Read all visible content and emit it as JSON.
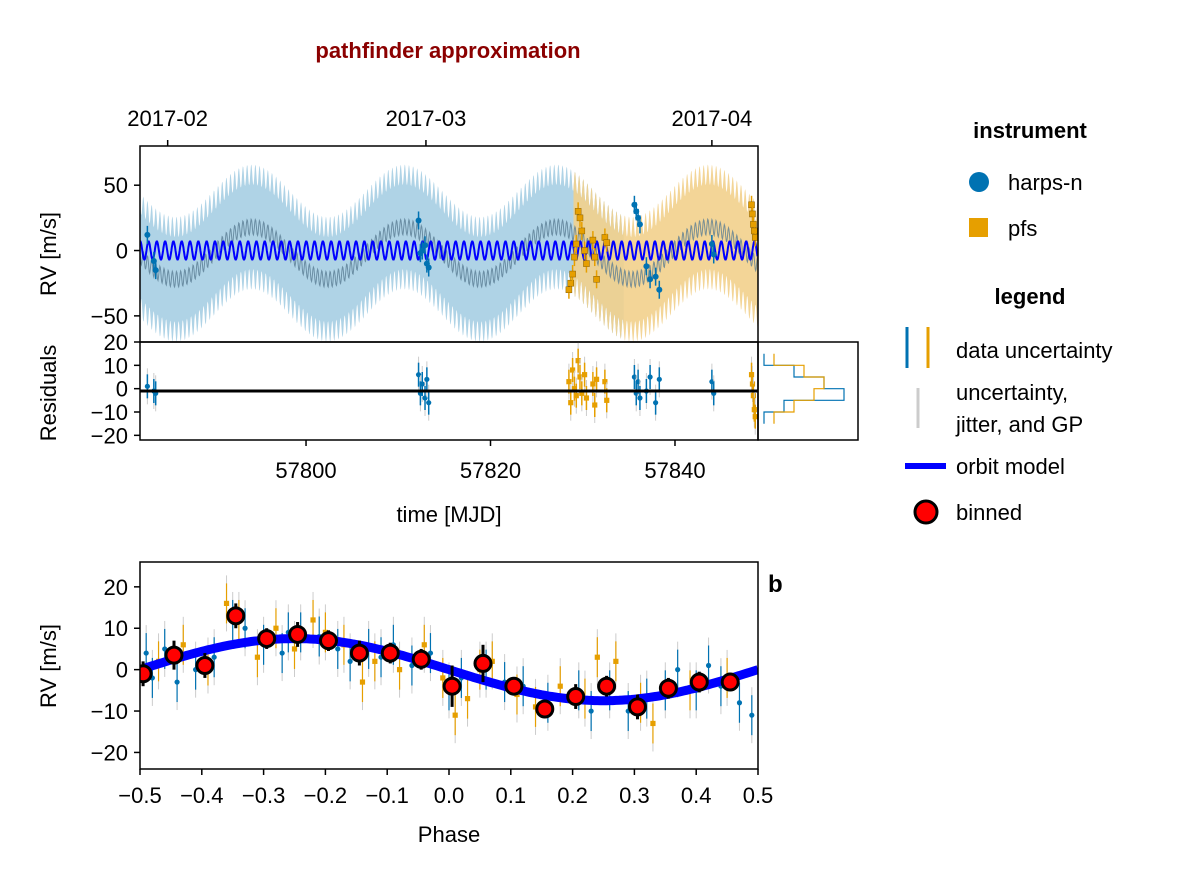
{
  "title": "pathfinder approximation",
  "colors": {
    "title": "#8b0000",
    "harps_n": "#0072b2",
    "harps_n_band": "#a6cee3",
    "pfs": "#e69f00",
    "pfs_band": "#f2d08c",
    "orbit_model": "#0000ff",
    "binned_fill": "#ff0000",
    "uncertainty_gray": "#cccccc"
  },
  "legend": {
    "instrument_title": "instrument",
    "instrument_items": [
      {
        "label": "harps-n",
        "marker": "circle"
      },
      {
        "label": "pfs",
        "marker": "square"
      }
    ],
    "legend_title": "legend",
    "items": [
      {
        "label": "data uncertainty"
      },
      {
        "label_lines": [
          "uncertainty,",
          "jitter, and GP"
        ]
      },
      {
        "label": "orbit model"
      },
      {
        "label": "binned"
      }
    ]
  },
  "panel_b_label": "b",
  "chart_data": [
    {
      "type": "scatter",
      "panel": "rv_vs_time",
      "ylabel": "RV [m/s]",
      "ylim": [
        -70,
        80
      ],
      "yticks": [
        -50,
        0,
        50
      ],
      "ytick_labels": [
        "−50",
        "0",
        "50"
      ],
      "xlim": [
        57782,
        57849
      ],
      "top_axis_ticks": [
        57785,
        57813,
        57844
      ],
      "top_axis_tick_labels": [
        "2017-02",
        "2017-03",
        "2017-04"
      ],
      "orbit_model": {
        "amplitude": 7,
        "period_days": 0.9,
        "note_style": "blue band"
      },
      "series": [
        {
          "name": "harps-n",
          "segments": [
            [
              57782,
              57829
            ],
            [
              57829,
              57849
            ]
          ],
          "x": [
            57782.8,
            57783.5,
            57783.7,
            57812.2,
            57812.4,
            57812.6,
            57812.9,
            57813.1,
            57813.3,
            57835.6,
            57835.8,
            57836.0,
            57836.2,
            57836.9,
            57837.3,
            57837.9,
            57838.3,
            57844.0,
            57844.2
          ],
          "y": [
            12,
            -8,
            -15,
            23,
            -2,
            0,
            4,
            -10,
            -13,
            35,
            30,
            25,
            20,
            -12,
            -22,
            -20,
            -30,
            5,
            -3
          ]
        },
        {
          "name": "pfs",
          "x": [
            57828.5,
            57828.7,
            57828.9,
            57829.1,
            57829.3,
            57829.5,
            57829.7,
            57829.9,
            57830.2,
            57830.4,
            57831.1,
            57831.3,
            57831.5,
            57832.4,
            57832.6,
            57848.3,
            57848.4,
            57848.5,
            57848.6,
            57848.7
          ],
          "y": [
            -30,
            -25,
            -18,
            -5,
            5,
            30,
            25,
            15,
            0,
            -10,
            8,
            -5,
            -22,
            10,
            6,
            35,
            28,
            20,
            15,
            10
          ]
        }
      ]
    },
    {
      "type": "scatter",
      "panel": "residuals",
      "ylabel": "Residuals",
      "xlabel": "time [MJD]",
      "ylim": [
        -22,
        20
      ],
      "yticks": [
        -20,
        -10,
        0,
        10,
        20
      ],
      "ytick_labels": [
        "−20",
        "−10",
        "0",
        "10",
        "20"
      ],
      "xlim": [
        57782,
        57849
      ],
      "xticks": [
        57800,
        57820,
        57840
      ],
      "xtick_labels": [
        "57800",
        "57820",
        "57840"
      ],
      "series": [
        {
          "name": "harps-n",
          "x": [
            57782.8,
            57783.5,
            57783.7,
            57812.2,
            57812.4,
            57812.6,
            57812.9,
            57813.1,
            57813.3,
            57835.6,
            57835.8,
            57836.0,
            57836.2,
            57836.9,
            57837.3,
            57837.9,
            57838.3,
            57844.0,
            57844.2
          ],
          "y": [
            1,
            -1,
            -2,
            6,
            -2,
            2,
            -4,
            4,
            -6,
            5,
            -2,
            3,
            -4,
            -1,
            5,
            -6,
            4,
            3,
            -2
          ]
        },
        {
          "name": "pfs",
          "x": [
            57828.5,
            57828.7,
            57828.9,
            57829.1,
            57829.3,
            57829.5,
            57829.7,
            57829.9,
            57830.2,
            57830.4,
            57831.1,
            57831.3,
            57831.5,
            57832.4,
            57832.6,
            57848.3,
            57848.4,
            57848.5,
            57848.6,
            57848.7
          ],
          "y": [
            3,
            -6,
            8,
            0,
            -3,
            12,
            5,
            -2,
            6,
            -4,
            2,
            -7,
            4,
            3,
            -5,
            6,
            2,
            -3,
            -9,
            -12
          ]
        }
      ]
    },
    {
      "type": "line",
      "panel": "phase_folded",
      "xlabel": "Phase",
      "ylabel": "RV [m/s]",
      "xlim": [
        -0.5,
        0.5
      ],
      "ylim": [
        -24,
        26
      ],
      "xticks": [
        -0.5,
        -0.4,
        -0.3,
        -0.2,
        -0.1,
        0.0,
        0.1,
        0.2,
        0.3,
        0.4,
        0.5
      ],
      "xtick_labels": [
        "−0.5",
        "−0.4",
        "−0.3",
        "−0.2",
        "−0.1",
        "0.0",
        "0.1",
        "0.2",
        "0.3",
        "0.4",
        "0.5"
      ],
      "yticks": [
        -20,
        -10,
        0,
        10,
        20
      ],
      "ytick_labels": [
        "−20",
        "−10",
        "0",
        "10",
        "20"
      ],
      "orbit_model": {
        "amplitude": 7.5,
        "phase_of_max": -0.25,
        "offset": 0
      },
      "binned": {
        "x": [
          -0.495,
          -0.445,
          -0.395,
          -0.345,
          -0.295,
          -0.245,
          -0.195,
          -0.145,
          -0.095,
          -0.045,
          0.005,
          0.055,
          0.105,
          0.155,
          0.205,
          0.255,
          0.305,
          0.355,
          0.405,
          0.455
        ],
        "y": [
          -1,
          3.5,
          1,
          13,
          7.5,
          8.5,
          7,
          4,
          4,
          2.5,
          -4,
          1.5,
          -4,
          -9.5,
          -6.5,
          -4,
          -9,
          -4.5,
          -3,
          -3
        ],
        "err": [
          3,
          3.5,
          3,
          3,
          2.5,
          3,
          2.5,
          3,
          2.5,
          2.5,
          5,
          4.5,
          2,
          1.5,
          3,
          2.5,
          3,
          2.5,
          2.5,
          2
        ]
      },
      "series": [
        {
          "name": "harps-n",
          "x": [
            -0.49,
            -0.48,
            -0.46,
            -0.44,
            -0.41,
            -0.38,
            -0.35,
            -0.33,
            -0.3,
            -0.27,
            -0.26,
            -0.24,
            -0.21,
            -0.18,
            -0.16,
            -0.13,
            -0.11,
            -0.09,
            -0.06,
            -0.03,
            0.0,
            0.02,
            0.06,
            0.09,
            0.12,
            0.16,
            0.21,
            0.23,
            0.26,
            0.29,
            0.32,
            0.35,
            0.37,
            0.4,
            0.42,
            0.44,
            0.47,
            0.49
          ],
          "y": [
            4,
            -2,
            5,
            -3,
            0,
            3,
            12,
            10,
            6,
            4,
            9,
            9,
            8,
            5,
            2,
            5,
            3,
            6,
            1,
            4,
            -5,
            -2,
            0,
            -3,
            -4,
            -8,
            -5,
            -10,
            -5,
            -10,
            -7,
            -5,
            0,
            -5,
            1,
            -4,
            -8,
            -11
          ]
        },
        {
          "name": "pfs",
          "x": [
            -0.47,
            -0.43,
            -0.39,
            -0.36,
            -0.34,
            -0.31,
            -0.28,
            -0.25,
            -0.22,
            -0.2,
            -0.17,
            -0.14,
            -0.12,
            -0.08,
            -0.04,
            -0.01,
            0.01,
            0.03,
            0.05,
            0.07,
            0.11,
            0.14,
            0.18,
            0.22,
            0.24,
            0.27,
            0.31,
            0.33,
            0.39,
            0.45
          ],
          "y": [
            2,
            6,
            1,
            16,
            12,
            3,
            10,
            5,
            12,
            9,
            6,
            -3,
            2,
            0,
            6,
            -2,
            -11,
            -7,
            0,
            2,
            -6,
            -9,
            -4,
            -7,
            3,
            2,
            -8,
            -13,
            -5,
            -2
          ]
        }
      ]
    }
  ]
}
